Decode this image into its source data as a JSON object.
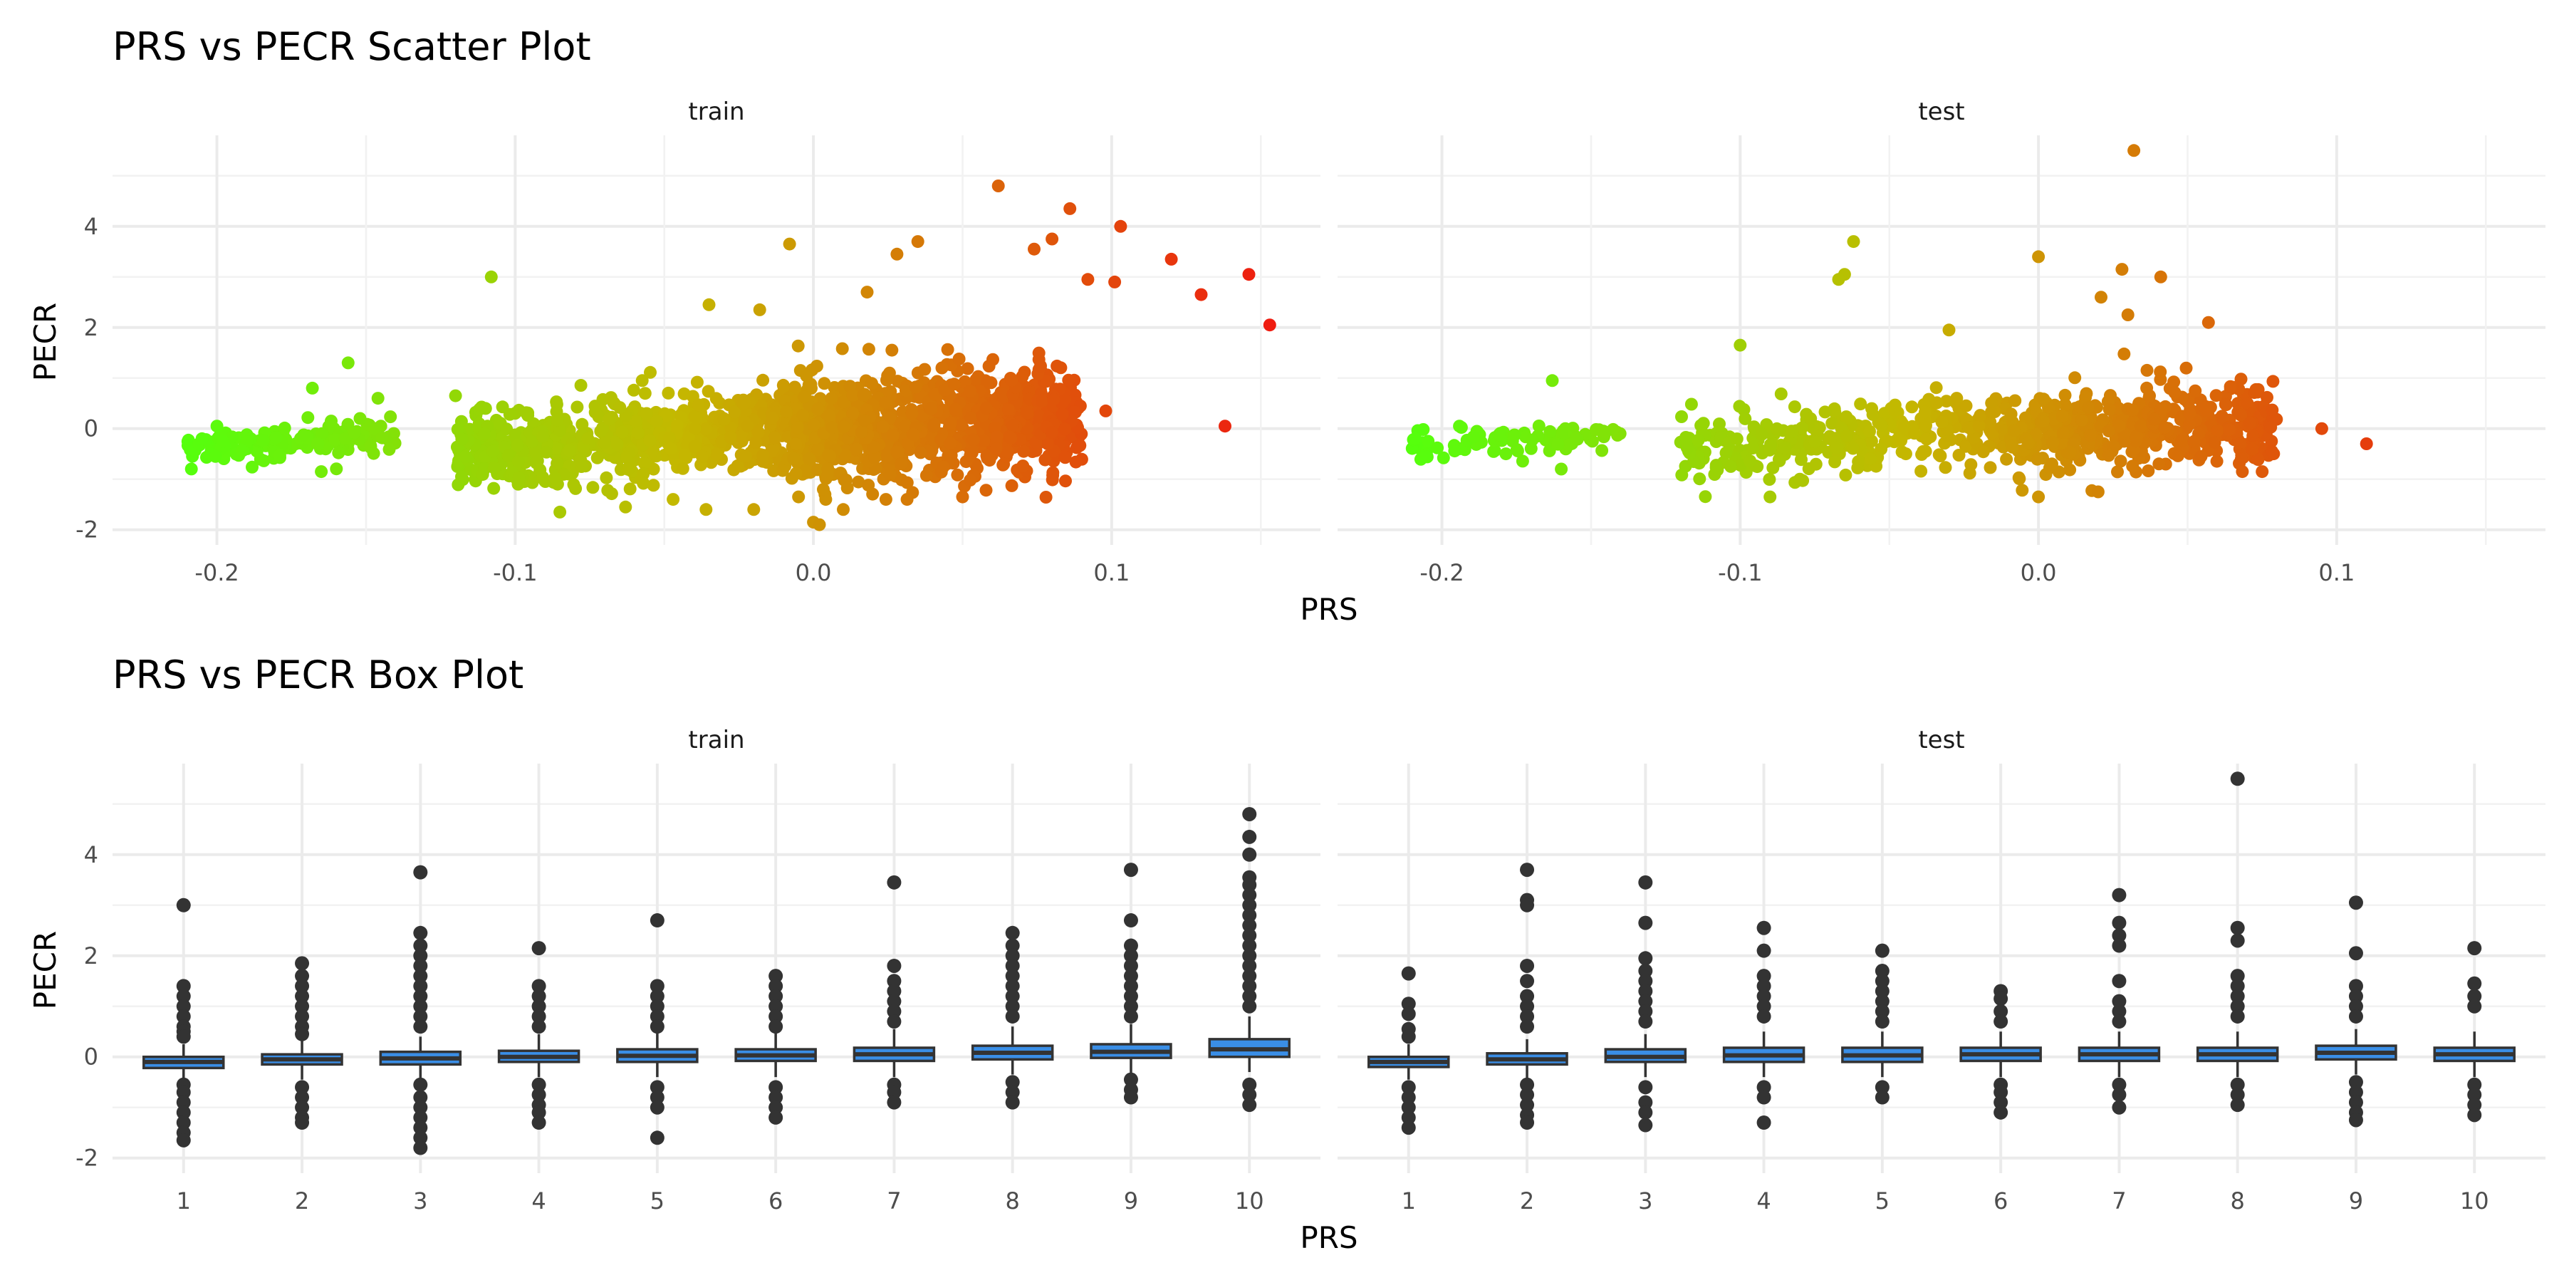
{
  "colors": {
    "scatter_low": "#55ff0d",
    "scatter_mid": "#c4b800",
    "scatter_high": "#ef1a10",
    "box_fill": "#3a8ee6",
    "box_stroke": "#333333",
    "grid": "#ebebeb"
  },
  "chart_data": [
    {
      "type": "scatter",
      "title": "PRS vs PECR Scatter Plot",
      "xlabel": "PRS",
      "ylabel": "PECR",
      "ylim": [
        -2.3,
        5.8
      ],
      "yticks": [
        -2,
        0,
        2,
        4
      ],
      "grid": true,
      "legend": "none",
      "color_scale": "continuous by PRS (green to orange-red)",
      "panels": [
        {
          "strip": "train",
          "xlim": [
            -0.235,
            0.17
          ],
          "xticks": [
            -0.2,
            -0.1,
            0.0,
            0.1
          ],
          "xtick_labels": [
            "-0.2",
            "-0.1",
            "0.0",
            "0.1"
          ],
          "clusters": [
            {
              "x": [
                -0.21,
                -0.14
              ],
              "y_mean": -0.25,
              "y_sd": 0.15,
              "n": 160
            },
            {
              "x": [
                -0.12,
                -0.01
              ],
              "y_mean": -0.2,
              "y_sd": 0.4,
              "n": 650
            },
            {
              "x": [
                -0.01,
                0.09
              ],
              "y_mean": 0.1,
              "y_sd": 0.5,
              "n": 950
            }
          ],
          "points": [
            [
              0.062,
              4.8
            ],
            [
              0.086,
              4.35
            ],
            [
              0.103,
              4.0
            ],
            [
              0.08,
              3.75
            ],
            [
              0.035,
              3.7
            ],
            [
              -0.008,
              3.65
            ],
            [
              0.028,
              3.45
            ],
            [
              0.12,
              3.35
            ],
            [
              0.074,
              3.55
            ],
            [
              0.146,
              3.05
            ],
            [
              0.092,
              2.95
            ],
            [
              0.101,
              2.9
            ],
            [
              0.13,
              2.65
            ],
            [
              0.153,
              2.05
            ],
            [
              -0.108,
              3.0
            ],
            [
              -0.035,
              2.45
            ],
            [
              0.018,
              2.7
            ],
            [
              -0.018,
              2.35
            ],
            [
              0.138,
              0.05
            ],
            [
              0.098,
              0.35
            ],
            [
              -0.156,
              1.3
            ],
            [
              -0.168,
              0.8
            ],
            [
              -0.146,
              0.6
            ],
            [
              -0.12,
              0.65
            ],
            [
              -0.2,
              0.05
            ],
            [
              -0.205,
              -0.2
            ],
            [
              -0.198,
              -0.25
            ],
            [
              -0.165,
              -0.85
            ],
            [
              -0.118,
              -0.95
            ],
            [
              -0.099,
              -1.1
            ],
            [
              -0.085,
              -1.65
            ],
            [
              -0.063,
              -1.55
            ],
            [
              -0.036,
              -1.6
            ],
            [
              -0.02,
              -1.6
            ],
            [
              -0.005,
              -1.35
            ],
            [
              0.0,
              -1.85
            ],
            [
              0.002,
              -1.9
            ],
            [
              0.01,
              -1.6
            ],
            [
              0.05,
              -1.35
            ]
          ]
        },
        {
          "strip": "test",
          "xlim": [
            -0.235,
            0.17
          ],
          "xticks": [
            -0.2,
            -0.1,
            0.0,
            0.1
          ],
          "xtick_labels": [
            "-0.2",
            "-0.1",
            "0.0",
            "0.1"
          ],
          "clusters": [
            {
              "x": [
                -0.21,
                -0.14
              ],
              "y_mean": -0.25,
              "y_sd": 0.15,
              "n": 90
            },
            {
              "x": [
                -0.12,
                -0.01
              ],
              "y_mean": -0.15,
              "y_sd": 0.35,
              "n": 300
            },
            {
              "x": [
                -0.01,
                0.08
              ],
              "y_mean": 0.0,
              "y_sd": 0.4,
              "n": 450
            }
          ],
          "points": [
            [
              0.032,
              5.5
            ],
            [
              -0.062,
              3.7
            ],
            [
              0.0,
              3.4
            ],
            [
              -0.065,
              3.05
            ],
            [
              -0.067,
              2.95
            ],
            [
              0.028,
              3.15
            ],
            [
              0.041,
              3.0
            ],
            [
              -0.1,
              1.65
            ],
            [
              -0.03,
              1.95
            ],
            [
              0.021,
              2.6
            ],
            [
              0.03,
              2.25
            ],
            [
              0.057,
              2.1
            ],
            [
              -0.163,
              0.95
            ],
            [
              0.11,
              -0.3
            ],
            [
              0.095,
              0.0
            ],
            [
              0.075,
              -0.85
            ],
            [
              0.068,
              -0.6
            ],
            [
              -0.209,
              -0.2
            ],
            [
              -0.16,
              -0.8
            ],
            [
              -0.09,
              -1.35
            ],
            [
              -0.08,
              -1.0
            ],
            [
              0.0,
              -1.35
            ],
            [
              0.02,
              -1.25
            ]
          ]
        }
      ]
    },
    {
      "type": "box",
      "title": "PRS vs PECR Box Plot",
      "xlabel": "PRS",
      "ylabel": "PECR",
      "ylim": [
        -2.3,
        5.8
      ],
      "yticks": [
        -2,
        0,
        2,
        4
      ],
      "grid": true,
      "legend": "none",
      "panels": [
        {
          "strip": "train",
          "categories": [
            "1",
            "2",
            "3",
            "4",
            "5",
            "6",
            "7",
            "8",
            "9",
            "10"
          ],
          "boxes": [
            {
              "q1": -0.22,
              "median": -0.1,
              "q3": 0.0,
              "whisker_low": -0.5,
              "whisker_high": 0.25,
              "outliers": [
                3.0,
                1.4,
                1.2,
                1.0,
                0.8,
                0.6,
                0.5,
                0.4,
                -0.55,
                -0.7,
                -0.9,
                -1.1,
                -1.3,
                -1.5,
                -1.65
              ]
            },
            {
              "q1": -0.15,
              "median": -0.05,
              "q3": 0.05,
              "whisker_low": -0.45,
              "whisker_high": 0.35,
              "outliers": [
                1.85,
                1.6,
                1.4,
                1.2,
                1.0,
                0.8,
                0.6,
                0.45,
                -0.6,
                -0.8,
                -1.0,
                -1.2,
                -1.3
              ]
            },
            {
              "q1": -0.15,
              "median": -0.03,
              "q3": 0.1,
              "whisker_low": -0.45,
              "whisker_high": 0.4,
              "outliers": [
                3.65,
                2.45,
                2.2,
                2.0,
                1.8,
                1.6,
                1.4,
                1.2,
                1.0,
                0.8,
                0.6,
                -0.55,
                -0.8,
                -1.0,
                -1.2,
                -1.4,
                -1.6,
                -1.8
              ]
            },
            {
              "q1": -0.1,
              "median": 0.0,
              "q3": 0.12,
              "whisker_low": -0.4,
              "whisker_high": 0.45,
              "outliers": [
                2.15,
                1.4,
                1.2,
                1.0,
                0.8,
                0.6,
                -0.55,
                -0.75,
                -0.95,
                -1.1,
                -1.3
              ]
            },
            {
              "q1": -0.1,
              "median": 0.02,
              "q3": 0.15,
              "whisker_low": -0.4,
              "whisker_high": 0.5,
              "outliers": [
                2.7,
                1.4,
                1.2,
                1.0,
                0.8,
                0.6,
                -0.6,
                -0.8,
                -1.0,
                -1.6
              ]
            },
            {
              "q1": -0.08,
              "median": 0.03,
              "q3": 0.15,
              "whisker_low": -0.4,
              "whisker_high": 0.5,
              "outliers": [
                1.6,
                1.4,
                1.2,
                1.0,
                0.8,
                0.6,
                -0.6,
                -0.8,
                -1.0,
                -1.2
              ]
            },
            {
              "q1": -0.08,
              "median": 0.05,
              "q3": 0.18,
              "whisker_low": -0.4,
              "whisker_high": 0.55,
              "outliers": [
                3.45,
                1.8,
                1.5,
                1.3,
                1.1,
                0.9,
                0.7,
                -0.55,
                -0.7,
                -0.9
              ]
            },
            {
              "q1": -0.05,
              "median": 0.08,
              "q3": 0.22,
              "whisker_low": -0.35,
              "whisker_high": 0.6,
              "outliers": [
                2.45,
                2.2,
                2.0,
                1.8,
                1.6,
                1.4,
                1.2,
                1.0,
                0.8,
                -0.5,
                -0.7,
                -0.9
              ]
            },
            {
              "q1": -0.02,
              "median": 0.1,
              "q3": 0.25,
              "whisker_low": -0.35,
              "whisker_high": 0.65,
              "outliers": [
                3.7,
                2.7,
                2.2,
                2.0,
                1.8,
                1.6,
                1.4,
                1.2,
                1.0,
                0.8,
                -0.45,
                -0.65,
                -0.8
              ]
            },
            {
              "q1": 0.0,
              "median": 0.15,
              "q3": 0.35,
              "whisker_low": -0.3,
              "whisker_high": 0.8,
              "outliers": [
                4.8,
                4.35,
                4.0,
                3.55,
                3.4,
                3.2,
                3.0,
                2.8,
                2.6,
                2.4,
                2.2,
                2.0,
                1.8,
                1.6,
                1.4,
                1.2,
                1.0,
                -0.55,
                -0.75,
                -0.95
              ]
            }
          ]
        },
        {
          "strip": "test",
          "categories": [
            "1",
            "2",
            "3",
            "4",
            "5",
            "6",
            "7",
            "8",
            "9",
            "10"
          ],
          "boxes": [
            {
              "q1": -0.2,
              "median": -0.1,
              "q3": 0.0,
              "whisker_low": -0.45,
              "whisker_high": 0.25,
              "outliers": [
                1.65,
                1.05,
                0.85,
                0.55,
                0.4,
                -0.6,
                -0.8,
                -1.0,
                -1.2,
                -1.4
              ]
            },
            {
              "q1": -0.15,
              "median": -0.05,
              "q3": 0.07,
              "whisker_low": -0.45,
              "whisker_high": 0.35,
              "outliers": [
                3.7,
                3.1,
                3.0,
                1.8,
                1.5,
                1.2,
                1.0,
                0.8,
                0.6,
                -0.55,
                -0.75,
                -0.95,
                -1.15,
                -1.3
              ]
            },
            {
              "q1": -0.1,
              "median": 0.0,
              "q3": 0.15,
              "whisker_low": -0.4,
              "whisker_high": 0.45,
              "outliers": [
                3.45,
                2.65,
                1.95,
                1.7,
                1.5,
                1.3,
                1.1,
                0.9,
                0.7,
                -0.6,
                -0.9,
                -1.1,
                -1.35
              ]
            },
            {
              "q1": -0.1,
              "median": 0.03,
              "q3": 0.18,
              "whisker_low": -0.4,
              "whisker_high": 0.5,
              "outliers": [
                2.55,
                2.1,
                1.6,
                1.4,
                1.2,
                1.0,
                0.8,
                -0.6,
                -0.8,
                -1.3
              ]
            },
            {
              "q1": -0.1,
              "median": 0.03,
              "q3": 0.18,
              "whisker_low": -0.4,
              "whisker_high": 0.5,
              "outliers": [
                2.1,
                1.7,
                1.5,
                1.3,
                1.1,
                0.9,
                0.7,
                -0.6,
                -0.8
              ]
            },
            {
              "q1": -0.08,
              "median": 0.05,
              "q3": 0.18,
              "whisker_low": -0.4,
              "whisker_high": 0.5,
              "outliers": [
                1.3,
                1.15,
                0.9,
                0.7,
                -0.55,
                -0.7,
                -0.9,
                -1.1
              ]
            },
            {
              "q1": -0.08,
              "median": 0.05,
              "q3": 0.18,
              "whisker_low": -0.4,
              "whisker_high": 0.5,
              "outliers": [
                3.2,
                2.65,
                2.4,
                2.2,
                1.5,
                1.1,
                0.9,
                0.7,
                -0.55,
                -0.75,
                -1.0
              ]
            },
            {
              "q1": -0.08,
              "median": 0.05,
              "q3": 0.18,
              "whisker_low": -0.4,
              "whisker_high": 0.5,
              "outliers": [
                5.5,
                2.55,
                2.3,
                1.6,
                1.4,
                1.2,
                1.0,
                0.8,
                -0.55,
                -0.75,
                -0.95
              ]
            },
            {
              "q1": -0.05,
              "median": 0.08,
              "q3": 0.22,
              "whisker_low": -0.35,
              "whisker_high": 0.55,
              "outliers": [
                3.05,
                2.05,
                1.4,
                1.2,
                1.0,
                0.8,
                -0.5,
                -0.7,
                -0.9,
                -1.1,
                -1.25
              ]
            },
            {
              "q1": -0.08,
              "median": 0.05,
              "q3": 0.18,
              "whisker_low": -0.4,
              "whisker_high": 0.5,
              "outliers": [
                2.15,
                1.45,
                1.2,
                1.0,
                -0.55,
                -0.75,
                -0.95,
                -1.15
              ]
            }
          ]
        }
      ]
    }
  ]
}
